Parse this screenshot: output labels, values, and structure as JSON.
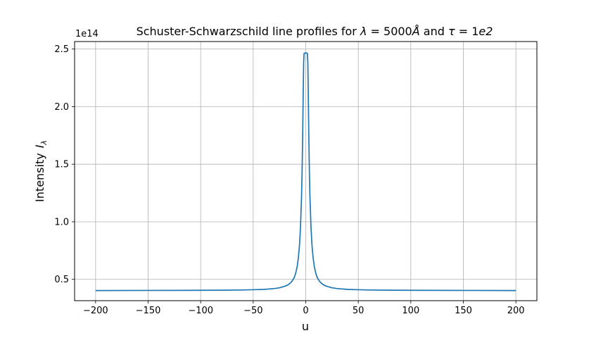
{
  "chart_data": {
    "type": "line",
    "title": "Schuster-Schwarzschild line profiles for λ = 5000Å and τ = 1e2",
    "title_parts": {
      "pre": "Schuster-Schwarzschild line profiles for ",
      "lambda": "λ",
      "lambda_eq": " = 5000",
      "angstrom": "Å",
      "and": " and ",
      "tau": "τ",
      "tau_eq": " = 1",
      "e2": "e2"
    },
    "xlabel": "u",
    "ylabel": "Intensity",
    "ylabel_symbol": "I",
    "ylabel_subscript": "λ",
    "y_offset_label": "1e14",
    "xlim": [
      -220,
      220
    ],
    "ylim": [
      0.315,
      2.565
    ],
    "grid": true,
    "x_ticks": [
      -200,
      -150,
      -100,
      -50,
      0,
      50,
      100,
      150,
      200
    ],
    "x_tick_labels": [
      "−200",
      "−150",
      "−100",
      "−50",
      "0",
      "50",
      "100",
      "150",
      "200"
    ],
    "y_ticks": [
      0.5,
      1.0,
      1.5,
      2.0,
      2.5
    ],
    "y_tick_labels": [
      "0.5",
      "1.0",
      "1.5",
      "2.0",
      "2.5"
    ],
    "series": [
      {
        "name": "Intensity",
        "color": "#1f77b4",
        "x": [
          -200,
          -150,
          -100,
          -80,
          -60,
          -50,
          -40,
          -30,
          -25,
          -20,
          -17,
          -15,
          -13,
          -11,
          -10,
          -9,
          -8,
          -7,
          -6,
          -5,
          -4,
          -3.5,
          -3,
          -2.5,
          -2,
          -1.6,
          -1.3,
          -1.15,
          -1.0,
          1.0,
          1.15,
          1.3,
          1.6,
          2,
          2.5,
          3,
          3.5,
          4,
          5,
          6,
          7,
          8,
          9,
          10,
          11,
          13,
          15,
          17,
          20,
          25,
          30,
          40,
          50,
          60,
          80,
          100,
          150,
          200
        ],
        "values": [
          0.403,
          0.404,
          0.405,
          0.406,
          0.408,
          0.41,
          0.413,
          0.42,
          0.427,
          0.44,
          0.452,
          0.465,
          0.485,
          0.515,
          0.54,
          0.575,
          0.62,
          0.69,
          0.79,
          0.95,
          1.22,
          1.42,
          1.7,
          2.05,
          2.38,
          2.46,
          2.465,
          2.465,
          2.465,
          2.465,
          2.465,
          2.465,
          2.46,
          2.38,
          2.05,
          1.7,
          1.42,
          1.22,
          0.95,
          0.79,
          0.69,
          0.62,
          0.575,
          0.54,
          0.515,
          0.485,
          0.465,
          0.452,
          0.44,
          0.427,
          0.42,
          0.413,
          0.41,
          0.408,
          0.406,
          0.405,
          0.404,
          0.403
        ]
      }
    ]
  }
}
